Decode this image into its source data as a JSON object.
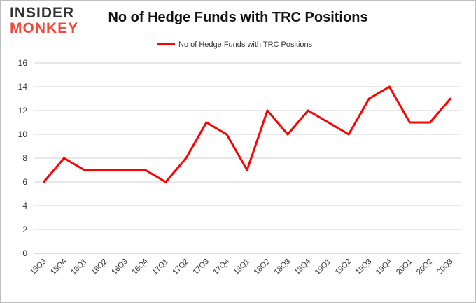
{
  "logo": {
    "line1": "INSIDER",
    "line2": "MONKEY"
  },
  "chart_data": {
    "type": "line",
    "title": "No of Hedge Funds with TRC Positions",
    "xlabel": "",
    "ylabel": "",
    "categories": [
      "15Q3",
      "15Q4",
      "16Q1",
      "16Q2",
      "16Q3",
      "16Q4",
      "17Q1",
      "17Q2",
      "17Q3",
      "17Q4",
      "18Q1",
      "18Q2",
      "18Q3",
      "18Q4",
      "19Q1",
      "19Q2",
      "19Q3",
      "19Q4",
      "20Q1",
      "20Q2",
      "20Q3"
    ],
    "series": [
      {
        "name": "No of Hedge Funds with TRC Positions",
        "values": [
          6,
          8,
          7,
          7,
          7,
          7,
          6,
          8,
          11,
          10,
          7,
          12,
          10,
          12,
          11,
          10,
          13,
          14,
          11,
          11,
          13
        ],
        "color": "#ff0000"
      }
    ],
    "ylim": [
      0,
      16
    ],
    "yticks": [
      0,
      2,
      4,
      6,
      8,
      10,
      12,
      14,
      16
    ],
    "grid": true,
    "legend_position": "top-center"
  }
}
